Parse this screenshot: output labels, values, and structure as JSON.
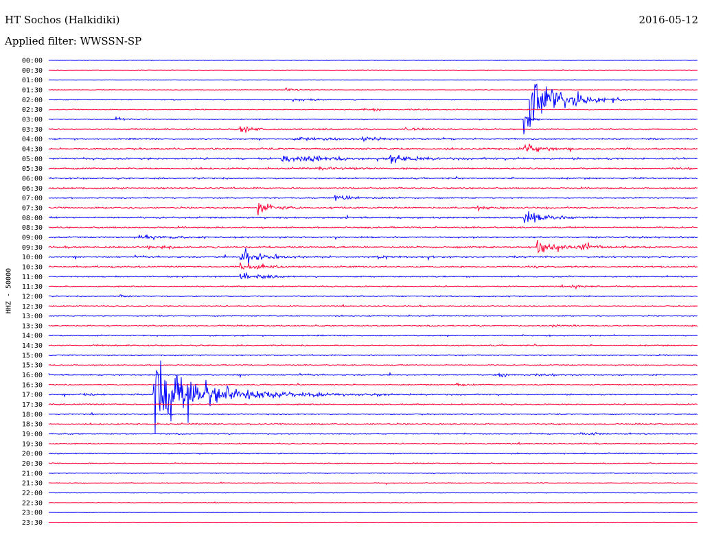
{
  "header": {
    "station": "HT Sochos (Halkidiki)",
    "date": "2016-05-12",
    "filter": "Applied filter: WWSSN-SP"
  },
  "chart_data": {
    "type": "line",
    "title": "HT Sochos (Halkidiki)",
    "subtitle": "Applied filter: WWSSN-SP",
    "ylabel": "HHZ - 50000",
    "xlabel": "",
    "row_labels": [
      "00:00",
      "00:30",
      "01:00",
      "01:30",
      "02:00",
      "02:30",
      "03:00",
      "03:30",
      "04:00",
      "04:30",
      "05:00",
      "05:30",
      "06:00",
      "06:30",
      "07:00",
      "07:30",
      "08:00",
      "08:30",
      "09:00",
      "09:30",
      "10:00",
      "10:30",
      "11:00",
      "11:30",
      "12:00",
      "12:30",
      "13:00",
      "13:30",
      "14:00",
      "14:30",
      "15:00",
      "15:30",
      "16:00",
      "16:30",
      "17:00",
      "17:30",
      "18:00",
      "18:30",
      "19:00",
      "19:30",
      "20:00",
      "20:30",
      "21:00",
      "21:30",
      "22:00",
      "22:30",
      "23:00",
      "23:30"
    ],
    "row_interval_minutes": 30,
    "colors": [
      "#0000ff",
      "#ff0033"
    ],
    "noise_levels": [
      0.5,
      0.6,
      0.4,
      0.6,
      0.9,
      1.0,
      1.0,
      1.1,
      1.5,
      1.7,
      2.0,
      1.6,
      1.6,
      1.5,
      1.3,
      1.6,
      1.8,
      1.6,
      1.6,
      1.8,
      1.7,
      1.5,
      1.4,
      1.3,
      1.2,
      1.2,
      1.2,
      1.3,
      1.3,
      1.3,
      1.1,
      1.2,
      1.4,
      1.2,
      1.4,
      1.4,
      1.2,
      1.4,
      1.2,
      1.1,
      1.1,
      1.0,
      0.8,
      0.8,
      0.6,
      0.6,
      0.4,
      0.3
    ],
    "events": [
      {
        "row": 3,
        "minute": 11.0,
        "amplitude": 6,
        "duration_minutes": 0.8
      },
      {
        "row": 4,
        "minute": 11.3,
        "amplitude": 6,
        "duration_minutes": 1.5
      },
      {
        "row": 4,
        "minute": 22.3,
        "amplitude": 110,
        "duration_minutes": 2.2
      },
      {
        "row": 5,
        "minute": 14.5,
        "amplitude": 6,
        "duration_minutes": 1.5
      },
      {
        "row": 6,
        "minute": 3.1,
        "amplitude": 4,
        "duration_minutes": 1.0
      },
      {
        "row": 6,
        "minute": 22.0,
        "amplitude": 60,
        "duration_minutes": 0.3
      },
      {
        "row": 7,
        "minute": 8.9,
        "amplitude": 10,
        "duration_minutes": 1.2
      },
      {
        "row": 7,
        "minute": 16.5,
        "amplitude": 8,
        "duration_minutes": 0.8
      },
      {
        "row": 8,
        "minute": 11.3,
        "amplitude": 6,
        "duration_minutes": 3.0
      },
      {
        "row": 8,
        "minute": 14.5,
        "amplitude": 7,
        "duration_minutes": 1.5
      },
      {
        "row": 9,
        "minute": 22.0,
        "amplitude": 18,
        "duration_minutes": 1.2
      },
      {
        "row": 10,
        "minute": 10.8,
        "amplitude": 16,
        "duration_minutes": 2.5
      },
      {
        "row": 10,
        "minute": 15.8,
        "amplitude": 12,
        "duration_minutes": 2.0
      },
      {
        "row": 11,
        "minute": 12.5,
        "amplitude": 4,
        "duration_minutes": 2.0
      },
      {
        "row": 14,
        "minute": 13.2,
        "amplitude": 10,
        "duration_minutes": 2.0
      },
      {
        "row": 15,
        "minute": 9.7,
        "amplitude": 24,
        "duration_minutes": 1.2
      },
      {
        "row": 15,
        "minute": 19.8,
        "amplitude": 6,
        "duration_minutes": 1.0
      },
      {
        "row": 16,
        "minute": 22.0,
        "amplitude": 22,
        "duration_minutes": 1.8
      },
      {
        "row": 18,
        "minute": 4.2,
        "amplitude": 8,
        "duration_minutes": 1.8
      },
      {
        "row": 19,
        "minute": 4.6,
        "amplitude": 8,
        "duration_minutes": 1.0
      },
      {
        "row": 19,
        "minute": 22.6,
        "amplitude": 28,
        "duration_minutes": 1.5
      },
      {
        "row": 19,
        "minute": 24.6,
        "amplitude": 8,
        "duration_minutes": 1.0
      },
      {
        "row": 20,
        "minute": 8.9,
        "amplitude": 30,
        "duration_minutes": 1.5
      },
      {
        "row": 20,
        "minute": 15.2,
        "amplitude": 6,
        "duration_minutes": 1.0
      },
      {
        "row": 21,
        "minute": 8.9,
        "amplitude": 16,
        "duration_minutes": 1.5
      },
      {
        "row": 22,
        "minute": 8.9,
        "amplitude": 12,
        "duration_minutes": 1.5
      },
      {
        "row": 23,
        "minute": 24.2,
        "amplitude": 6,
        "duration_minutes": 1.0
      },
      {
        "row": 24,
        "minute": 3.3,
        "amplitude": 4,
        "duration_minutes": 0.8
      },
      {
        "row": 27,
        "minute": 23.3,
        "amplitude": 5,
        "duration_minutes": 0.8
      },
      {
        "row": 32,
        "minute": 20.6,
        "amplitude": 6,
        "duration_minutes": 2.0
      },
      {
        "row": 33,
        "minute": 18.9,
        "amplitude": 5,
        "duration_minutes": 0.8
      },
      {
        "row": 34,
        "minute": 1.5,
        "amplitude": 5,
        "duration_minutes": 1.0
      },
      {
        "row": 34,
        "minute": 4.9,
        "amplitude": 120,
        "duration_minutes": 4.0
      },
      {
        "row": 38,
        "minute": 24.6,
        "amplitude": 6,
        "duration_minutes": 1.2
      }
    ]
  }
}
